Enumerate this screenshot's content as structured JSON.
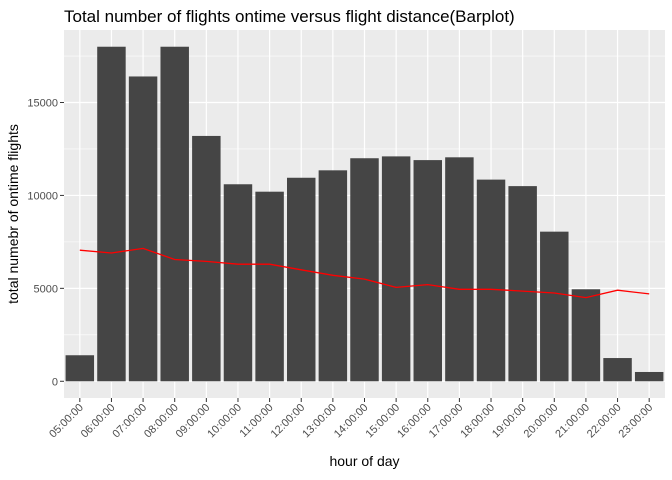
{
  "chart_data": {
    "type": "bar",
    "title": "Total number of flights ontime versus flight distance(Barplot)",
    "xlabel": "hour of day",
    "ylabel": "total numebr of ontime flights",
    "categories": [
      "05:00:00",
      "06:00:00",
      "07:00:00",
      "08:00:00",
      "09:00:00",
      "10:00:00",
      "11:00:00",
      "12:00:00",
      "13:00:00",
      "14:00:00",
      "15:00:00",
      "16:00:00",
      "17:00:00",
      "18:00:00",
      "19:00:00",
      "20:00:00",
      "21:00:00",
      "22:00:00",
      "23:00:00"
    ],
    "series": [
      {
        "type": "bar",
        "values": [
          1400,
          18000,
          16400,
          18000,
          13200,
          10600,
          10200,
          10950,
          11350,
          12000,
          12100,
          11900,
          12050,
          10850,
          10500,
          8050,
          4950,
          1250,
          500
        ],
        "color": "#454545"
      },
      {
        "type": "line",
        "values": [
          7050,
          6900,
          7150,
          6550,
          6450,
          6300,
          6300,
          6000,
          5700,
          5500,
          5050,
          5200,
          4950,
          4950,
          4850,
          4750,
          4500,
          4900,
          4700
        ],
        "color": "#ff0000"
      }
    ],
    "yticks": [
      0,
      5000,
      10000,
      15000
    ],
    "ytick_labels": [
      "0",
      "5000",
      "10000",
      "15000"
    ],
    "ylim": [
      -900,
      18900
    ],
    "grid": true,
    "panel_background": "#ebebeb",
    "grid_color": "#ffffff"
  }
}
